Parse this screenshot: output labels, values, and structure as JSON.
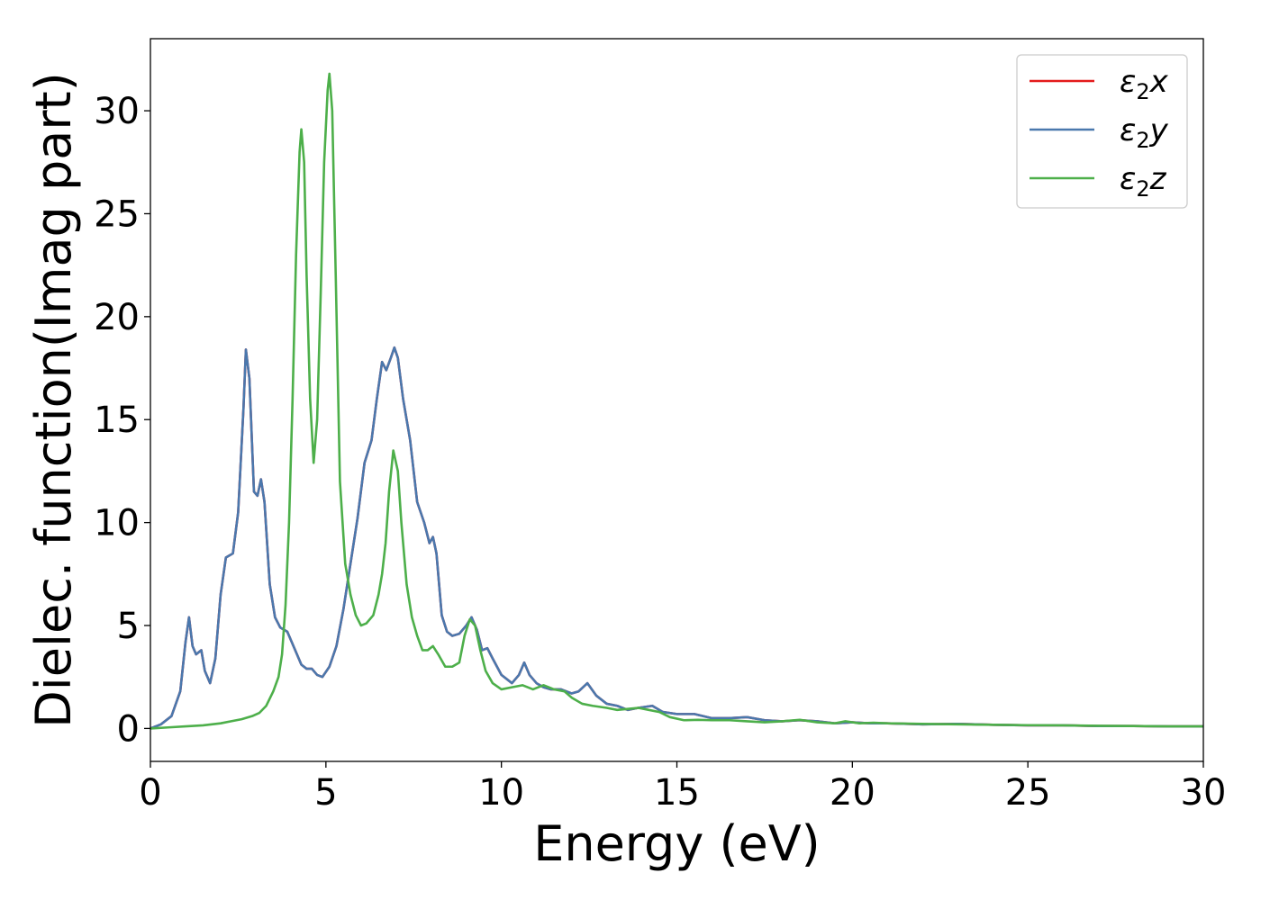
{
  "chart_data": {
    "type": "line",
    "xlabel": "Energy (eV)",
    "ylabel": "Dielec. function(Imag part)",
    "xlim": [
      0,
      30
    ],
    "ylim": [
      -1.6,
      33.5
    ],
    "xticks": [
      0,
      5,
      10,
      15,
      20,
      25,
      30
    ],
    "yticks": [
      0,
      5,
      10,
      15,
      20,
      25,
      30
    ],
    "grid": false,
    "legend_position": "top-right",
    "series": [
      {
        "name": "ε2x",
        "label_base": "ε",
        "label_sub": "2",
        "label_suffix": "x",
        "color": "#e41a1c",
        "points": [
          [
            0,
            0
          ],
          [
            0.3,
            0.2
          ],
          [
            0.6,
            0.6
          ],
          [
            0.85,
            1.8
          ],
          [
            1.0,
            4.2
          ],
          [
            1.1,
            5.4
          ],
          [
            1.2,
            4.0
          ],
          [
            1.3,
            3.6
          ],
          [
            1.45,
            3.8
          ],
          [
            1.55,
            2.8
          ],
          [
            1.7,
            2.2
          ],
          [
            1.85,
            3.4
          ],
          [
            2.0,
            6.5
          ],
          [
            2.15,
            8.3
          ],
          [
            2.35,
            8.5
          ],
          [
            2.5,
            10.5
          ],
          [
            2.65,
            15.5
          ],
          [
            2.72,
            18.4
          ],
          [
            2.82,
            17.0
          ],
          [
            2.95,
            11.5
          ],
          [
            3.05,
            11.3
          ],
          [
            3.15,
            12.1
          ],
          [
            3.25,
            11.0
          ],
          [
            3.4,
            7.0
          ],
          [
            3.55,
            5.4
          ],
          [
            3.7,
            4.9
          ],
          [
            3.9,
            4.7
          ],
          [
            4.1,
            3.9
          ],
          [
            4.3,
            3.1
          ],
          [
            4.45,
            2.9
          ],
          [
            4.6,
            2.9
          ],
          [
            4.75,
            2.6
          ],
          [
            4.9,
            2.5
          ],
          [
            5.1,
            3.0
          ],
          [
            5.3,
            4.0
          ],
          [
            5.5,
            5.8
          ],
          [
            5.7,
            8.0
          ],
          [
            5.9,
            10.2
          ],
          [
            6.1,
            12.9
          ],
          [
            6.3,
            14.0
          ],
          [
            6.45,
            16.0
          ],
          [
            6.6,
            17.8
          ],
          [
            6.72,
            17.4
          ],
          [
            6.85,
            18.0
          ],
          [
            6.95,
            18.5
          ],
          [
            7.05,
            18.0
          ],
          [
            7.2,
            16.0
          ],
          [
            7.4,
            14.0
          ],
          [
            7.6,
            11.0
          ],
          [
            7.8,
            10.0
          ],
          [
            7.95,
            9.0
          ],
          [
            8.05,
            9.3
          ],
          [
            8.15,
            8.5
          ],
          [
            8.3,
            5.5
          ],
          [
            8.45,
            4.7
          ],
          [
            8.6,
            4.5
          ],
          [
            8.8,
            4.6
          ],
          [
            9.0,
            5.0
          ],
          [
            9.15,
            5.4
          ],
          [
            9.3,
            4.8
          ],
          [
            9.45,
            3.8
          ],
          [
            9.6,
            3.9
          ],
          [
            9.75,
            3.4
          ],
          [
            10.0,
            2.6
          ],
          [
            10.3,
            2.2
          ],
          [
            10.5,
            2.6
          ],
          [
            10.65,
            3.2
          ],
          [
            10.8,
            2.6
          ],
          [
            11.0,
            2.2
          ],
          [
            11.2,
            2.0
          ],
          [
            11.4,
            1.9
          ],
          [
            11.7,
            1.9
          ],
          [
            12.0,
            1.7
          ],
          [
            12.2,
            1.8
          ],
          [
            12.45,
            2.2
          ],
          [
            12.7,
            1.6
          ],
          [
            13.0,
            1.2
          ],
          [
            13.3,
            1.1
          ],
          [
            13.6,
            0.9
          ],
          [
            13.9,
            1.0
          ],
          [
            14.3,
            1.1
          ],
          [
            14.6,
            0.8
          ],
          [
            15.0,
            0.7
          ],
          [
            15.5,
            0.7
          ],
          [
            16.0,
            0.5
          ],
          [
            16.5,
            0.5
          ],
          [
            17.0,
            0.55
          ],
          [
            17.5,
            0.4
          ],
          [
            18.0,
            0.35
          ],
          [
            18.5,
            0.4
          ],
          [
            19.0,
            0.35
          ],
          [
            19.5,
            0.25
          ],
          [
            20.0,
            0.3
          ],
          [
            20.5,
            0.25
          ],
          [
            21.0,
            0.25
          ],
          [
            22.0,
            0.2
          ],
          [
            23.0,
            0.22
          ],
          [
            24.0,
            0.18
          ],
          [
            25.0,
            0.15
          ],
          [
            26.0,
            0.15
          ],
          [
            27.0,
            0.12
          ],
          [
            28.0,
            0.12
          ],
          [
            29.0,
            0.1
          ],
          [
            30.0,
            0.1
          ]
        ]
      },
      {
        "name": "ε2y",
        "label_base": "ε",
        "label_sub": "2",
        "label_suffix": "y",
        "color": "#4a78ad",
        "points": [
          [
            0,
            0
          ],
          [
            0.3,
            0.2
          ],
          [
            0.6,
            0.6
          ],
          [
            0.85,
            1.8
          ],
          [
            1.0,
            4.2
          ],
          [
            1.1,
            5.4
          ],
          [
            1.2,
            4.0
          ],
          [
            1.3,
            3.6
          ],
          [
            1.45,
            3.8
          ],
          [
            1.55,
            2.8
          ],
          [
            1.7,
            2.2
          ],
          [
            1.85,
            3.4
          ],
          [
            2.0,
            6.5
          ],
          [
            2.15,
            8.3
          ],
          [
            2.35,
            8.5
          ],
          [
            2.5,
            10.5
          ],
          [
            2.65,
            15.5
          ],
          [
            2.72,
            18.4
          ],
          [
            2.82,
            17.0
          ],
          [
            2.95,
            11.5
          ],
          [
            3.05,
            11.3
          ],
          [
            3.15,
            12.1
          ],
          [
            3.25,
            11.0
          ],
          [
            3.4,
            7.0
          ],
          [
            3.55,
            5.4
          ],
          [
            3.7,
            4.9
          ],
          [
            3.9,
            4.7
          ],
          [
            4.1,
            3.9
          ],
          [
            4.3,
            3.1
          ],
          [
            4.45,
            2.9
          ],
          [
            4.6,
            2.9
          ],
          [
            4.75,
            2.6
          ],
          [
            4.9,
            2.5
          ],
          [
            5.1,
            3.0
          ],
          [
            5.3,
            4.0
          ],
          [
            5.5,
            5.8
          ],
          [
            5.7,
            8.0
          ],
          [
            5.9,
            10.2
          ],
          [
            6.1,
            12.9
          ],
          [
            6.3,
            14.0
          ],
          [
            6.45,
            16.0
          ],
          [
            6.6,
            17.8
          ],
          [
            6.72,
            17.4
          ],
          [
            6.85,
            18.0
          ],
          [
            6.95,
            18.5
          ],
          [
            7.05,
            18.0
          ],
          [
            7.2,
            16.0
          ],
          [
            7.4,
            14.0
          ],
          [
            7.6,
            11.0
          ],
          [
            7.8,
            10.0
          ],
          [
            7.95,
            9.0
          ],
          [
            8.05,
            9.3
          ],
          [
            8.15,
            8.5
          ],
          [
            8.3,
            5.5
          ],
          [
            8.45,
            4.7
          ],
          [
            8.6,
            4.5
          ],
          [
            8.8,
            4.6
          ],
          [
            9.0,
            5.0
          ],
          [
            9.15,
            5.4
          ],
          [
            9.3,
            4.8
          ],
          [
            9.45,
            3.8
          ],
          [
            9.6,
            3.9
          ],
          [
            9.75,
            3.4
          ],
          [
            10.0,
            2.6
          ],
          [
            10.3,
            2.2
          ],
          [
            10.5,
            2.6
          ],
          [
            10.65,
            3.2
          ],
          [
            10.8,
            2.6
          ],
          [
            11.0,
            2.2
          ],
          [
            11.2,
            2.0
          ],
          [
            11.4,
            1.9
          ],
          [
            11.7,
            1.9
          ],
          [
            12.0,
            1.7
          ],
          [
            12.2,
            1.8
          ],
          [
            12.45,
            2.2
          ],
          [
            12.7,
            1.6
          ],
          [
            13.0,
            1.2
          ],
          [
            13.3,
            1.1
          ],
          [
            13.6,
            0.9
          ],
          [
            13.9,
            1.0
          ],
          [
            14.3,
            1.1
          ],
          [
            14.6,
            0.8
          ],
          [
            15.0,
            0.7
          ],
          [
            15.5,
            0.7
          ],
          [
            16.0,
            0.5
          ],
          [
            16.5,
            0.5
          ],
          [
            17.0,
            0.55
          ],
          [
            17.5,
            0.4
          ],
          [
            18.0,
            0.35
          ],
          [
            18.5,
            0.4
          ],
          [
            19.0,
            0.35
          ],
          [
            19.5,
            0.25
          ],
          [
            20.0,
            0.3
          ],
          [
            20.5,
            0.25
          ],
          [
            21.0,
            0.25
          ],
          [
            22.0,
            0.2
          ],
          [
            23.0,
            0.22
          ],
          [
            24.0,
            0.18
          ],
          [
            25.0,
            0.15
          ],
          [
            26.0,
            0.15
          ],
          [
            27.0,
            0.12
          ],
          [
            28.0,
            0.12
          ],
          [
            29.0,
            0.1
          ],
          [
            30.0,
            0.1
          ]
        ]
      },
      {
        "name": "ε2z",
        "label_base": "ε",
        "label_sub": "2",
        "label_suffix": "z",
        "color": "#4daf4a",
        "points": [
          [
            0,
            0
          ],
          [
            0.5,
            0.05
          ],
          [
            1.0,
            0.1
          ],
          [
            1.5,
            0.15
          ],
          [
            2.0,
            0.25
          ],
          [
            2.3,
            0.35
          ],
          [
            2.6,
            0.45
          ],
          [
            2.9,
            0.6
          ],
          [
            3.1,
            0.75
          ],
          [
            3.3,
            1.1
          ],
          [
            3.5,
            1.8
          ],
          [
            3.65,
            2.5
          ],
          [
            3.75,
            3.6
          ],
          [
            3.85,
            6.0
          ],
          [
            3.95,
            10.0
          ],
          [
            4.05,
            16.0
          ],
          [
            4.15,
            23.0
          ],
          [
            4.25,
            28.0
          ],
          [
            4.3,
            29.1
          ],
          [
            4.38,
            27.5
          ],
          [
            4.45,
            22.0
          ],
          [
            4.55,
            16.0
          ],
          [
            4.65,
            12.9
          ],
          [
            4.75,
            15.0
          ],
          [
            4.85,
            21.0
          ],
          [
            4.95,
            27.5
          ],
          [
            5.05,
            31.0
          ],
          [
            5.1,
            31.8
          ],
          [
            5.18,
            30.0
          ],
          [
            5.28,
            22.0
          ],
          [
            5.4,
            12.0
          ],
          [
            5.55,
            8.0
          ],
          [
            5.7,
            6.5
          ],
          [
            5.85,
            5.5
          ],
          [
            6.0,
            5.0
          ],
          [
            6.15,
            5.1
          ],
          [
            6.35,
            5.5
          ],
          [
            6.5,
            6.5
          ],
          [
            6.6,
            7.5
          ],
          [
            6.7,
            9.0
          ],
          [
            6.8,
            11.5
          ],
          [
            6.92,
            13.5
          ],
          [
            7.05,
            12.5
          ],
          [
            7.15,
            10.0
          ],
          [
            7.3,
            7.0
          ],
          [
            7.45,
            5.4
          ],
          [
            7.6,
            4.5
          ],
          [
            7.75,
            3.8
          ],
          [
            7.9,
            3.8
          ],
          [
            8.05,
            4.0
          ],
          [
            8.2,
            3.6
          ],
          [
            8.4,
            3.0
          ],
          [
            8.6,
            3.0
          ],
          [
            8.8,
            3.2
          ],
          [
            8.95,
            4.5
          ],
          [
            9.1,
            5.3
          ],
          [
            9.25,
            5.0
          ],
          [
            9.4,
            3.8
          ],
          [
            9.55,
            2.8
          ],
          [
            9.75,
            2.2
          ],
          [
            10.0,
            1.9
          ],
          [
            10.3,
            2.0
          ],
          [
            10.6,
            2.1
          ],
          [
            10.9,
            1.9
          ],
          [
            11.2,
            2.1
          ],
          [
            11.5,
            1.9
          ],
          [
            11.8,
            1.8
          ],
          [
            12.0,
            1.5
          ],
          [
            12.3,
            1.2
          ],
          [
            12.6,
            1.1
          ],
          [
            13.0,
            1.0
          ],
          [
            13.3,
            0.9
          ],
          [
            13.6,
            0.95
          ],
          [
            13.9,
            1.0
          ],
          [
            14.2,
            0.9
          ],
          [
            14.5,
            0.8
          ],
          [
            14.8,
            0.55
          ],
          [
            15.2,
            0.4
          ],
          [
            15.6,
            0.42
          ],
          [
            16.0,
            0.4
          ],
          [
            16.5,
            0.4
          ],
          [
            17.0,
            0.35
          ],
          [
            17.5,
            0.3
          ],
          [
            18.0,
            0.35
          ],
          [
            18.5,
            0.42
          ],
          [
            19.0,
            0.3
          ],
          [
            19.5,
            0.25
          ],
          [
            19.8,
            0.35
          ],
          [
            20.2,
            0.25
          ],
          [
            20.6,
            0.28
          ],
          [
            21.0,
            0.25
          ],
          [
            22.0,
            0.22
          ],
          [
            23.0,
            0.2
          ],
          [
            24.0,
            0.18
          ],
          [
            25.0,
            0.16
          ],
          [
            26.0,
            0.15
          ],
          [
            27.0,
            0.13
          ],
          [
            28.0,
            0.12
          ],
          [
            29.0,
            0.1
          ],
          [
            30.0,
            0.1
          ]
        ]
      }
    ]
  }
}
